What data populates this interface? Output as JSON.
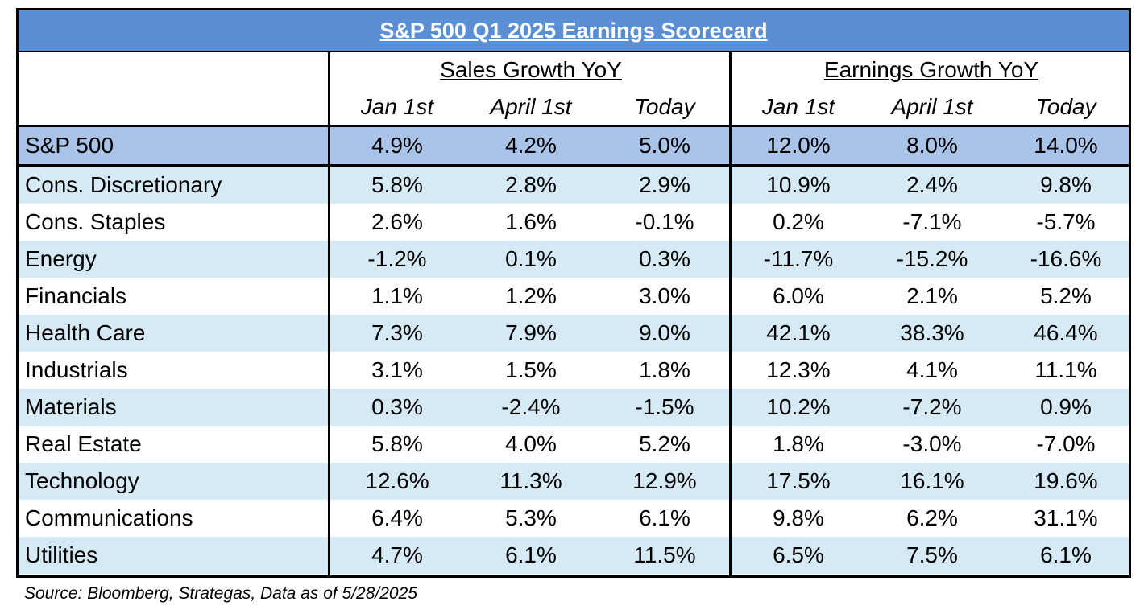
{
  "chart_data": {
    "type": "table",
    "title": "S&P 500 Q1 2025 Earnings Scorecard",
    "column_groups": [
      "Sales Growth YoY",
      "Earnings Growth YoY"
    ],
    "sub_columns": [
      "Jan 1st",
      "April 1st",
      "Today"
    ],
    "rows": [
      {
        "label": "S&P 500",
        "values": [
          "4.9%",
          "4.2%",
          "5.0%",
          "12.0%",
          "8.0%",
          "14.0%"
        ]
      },
      {
        "label": "Cons. Discretionary",
        "values": [
          "5.8%",
          "2.8%",
          "2.9%",
          "10.9%",
          "2.4%",
          "9.8%"
        ]
      },
      {
        "label": "Cons. Staples",
        "values": [
          "2.6%",
          "1.6%",
          "-0.1%",
          "0.2%",
          "-7.1%",
          "-5.7%"
        ]
      },
      {
        "label": "Energy",
        "values": [
          "-1.2%",
          "0.1%",
          "0.3%",
          "-11.7%",
          "-15.2%",
          "-16.6%"
        ]
      },
      {
        "label": "Financials",
        "values": [
          "1.1%",
          "1.2%",
          "3.0%",
          "6.0%",
          "2.1%",
          "5.2%"
        ]
      },
      {
        "label": "Health Care",
        "values": [
          "7.3%",
          "7.9%",
          "9.0%",
          "42.1%",
          "38.3%",
          "46.4%"
        ]
      },
      {
        "label": "Industrials",
        "values": [
          "3.1%",
          "1.5%",
          "1.8%",
          "12.3%",
          "4.1%",
          "11.1%"
        ]
      },
      {
        "label": "Materials",
        "values": [
          "0.3%",
          "-2.4%",
          "-1.5%",
          "10.2%",
          "-7.2%",
          "0.9%"
        ]
      },
      {
        "label": "Real Estate",
        "values": [
          "5.8%",
          "4.0%",
          "5.2%",
          "1.8%",
          "-3.0%",
          "-7.0%"
        ]
      },
      {
        "label": "Technology",
        "values": [
          "12.6%",
          "11.3%",
          "12.9%",
          "17.5%",
          "16.1%",
          "19.6%"
        ]
      },
      {
        "label": "Communications",
        "values": [
          "6.4%",
          "5.3%",
          "6.1%",
          "9.8%",
          "6.2%",
          "31.1%"
        ]
      },
      {
        "label": "Utilities",
        "values": [
          "4.7%",
          "6.1%",
          "11.5%",
          "6.5%",
          "7.5%",
          "6.1%"
        ]
      }
    ]
  },
  "source": "Source: Bloomberg, Strategas, Data as of 5/28/2025",
  "colors": {
    "title_bg": "#5b8fd4",
    "total_row_bg": "#a9c4e8",
    "band_bg": "#d6eaf6",
    "plain_bg": "#ffffff"
  }
}
